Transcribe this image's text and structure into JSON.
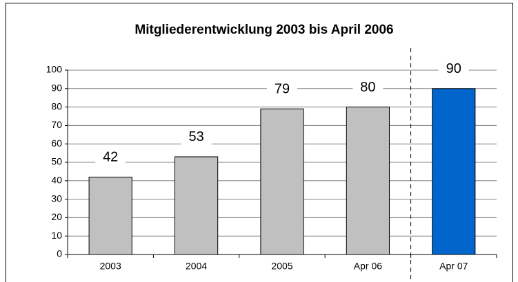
{
  "chart_data": {
    "type": "bar",
    "title": "Mitgliederentwicklung 2003 bis April 2006",
    "categories": [
      "2003",
      "2004",
      "2005",
      "Apr 06",
      "Apr 07"
    ],
    "values": [
      42,
      53,
      79,
      80,
      90
    ],
    "colors": [
      "#c0c0c0",
      "#c0c0c0",
      "#c0c0c0",
      "#c0c0c0",
      "#0066cc"
    ],
    "ylim": [
      0,
      100
    ],
    "yticks": [
      0,
      10,
      20,
      30,
      40,
      50,
      60,
      70,
      80,
      90,
      100
    ],
    "grid": true
  }
}
